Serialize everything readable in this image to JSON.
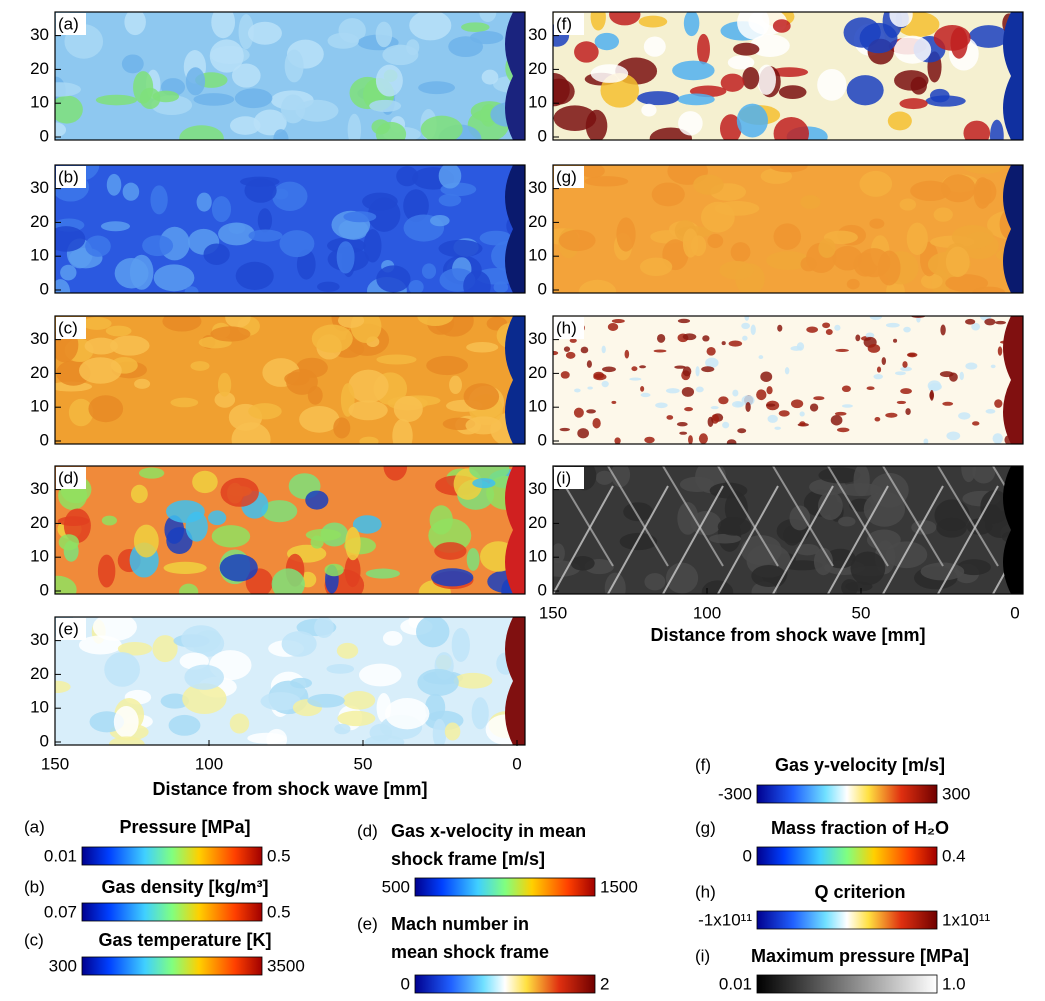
{
  "panels": [
    {
      "label": "(a)",
      "yticks": [
        0,
        10,
        20,
        30
      ]
    },
    {
      "label": "(b)",
      "yticks": [
        0,
        10,
        20,
        30
      ]
    },
    {
      "label": "(c)",
      "yticks": [
        0,
        10,
        20,
        30
      ]
    },
    {
      "label": "(d)",
      "yticks": [
        0,
        10,
        20,
        30
      ]
    },
    {
      "label": "(e)",
      "yticks": [
        0,
        10,
        20,
        30
      ]
    },
    {
      "label": "(f)",
      "yticks": [
        0,
        10,
        20,
        30
      ]
    },
    {
      "label": "(g)",
      "yticks": [
        0,
        10,
        20,
        30
      ]
    },
    {
      "label": "(h)",
      "yticks": [
        0,
        10,
        20,
        30
      ]
    },
    {
      "label": "(i)",
      "yticks": [
        0,
        10,
        20,
        30
      ]
    }
  ],
  "x_axes": [
    {
      "ticks": [
        150,
        100,
        50,
        0
      ],
      "label": "Distance from shock wave [mm]"
    },
    {
      "ticks": [
        150,
        100,
        50,
        0
      ],
      "label": "Distance from shock wave [mm]"
    }
  ],
  "colorbars": [
    {
      "label": "(a)",
      "title": [
        "Pressure [MPa]"
      ],
      "min": "0.01",
      "max": "0.5"
    },
    {
      "label": "(b)",
      "title": [
        "Gas density [kg/m³]"
      ],
      "min": "0.07",
      "max": "0.5"
    },
    {
      "label": "(c)",
      "title": [
        "Gas temperature [K]"
      ],
      "min": "300",
      "max": "3500"
    },
    {
      "label": "(d)",
      "title": [
        "Gas x-velocity in mean",
        "shock frame [m/s]"
      ],
      "min": "500",
      "max": "1500"
    },
    {
      "label": "(e)",
      "title": [
        "Mach number in",
        "mean shock frame"
      ],
      "min": "0",
      "max": "2"
    },
    {
      "label": "(f)",
      "title": [
        "Gas y-velocity [m/s]"
      ],
      "min": "-300",
      "max": "300"
    },
    {
      "label": "(g)",
      "title": [
        "Mass fraction of H₂O"
      ],
      "min": "0",
      "max": "0.4"
    },
    {
      "label": "(h)",
      "title": [
        "Q criterion"
      ],
      "min": "-1x10¹¹",
      "max": "1x10¹¹"
    },
    {
      "label": "(i)",
      "title": [
        "Maximum pressure [MPa]"
      ],
      "min": "0.01",
      "max": "1.0"
    }
  ]
}
